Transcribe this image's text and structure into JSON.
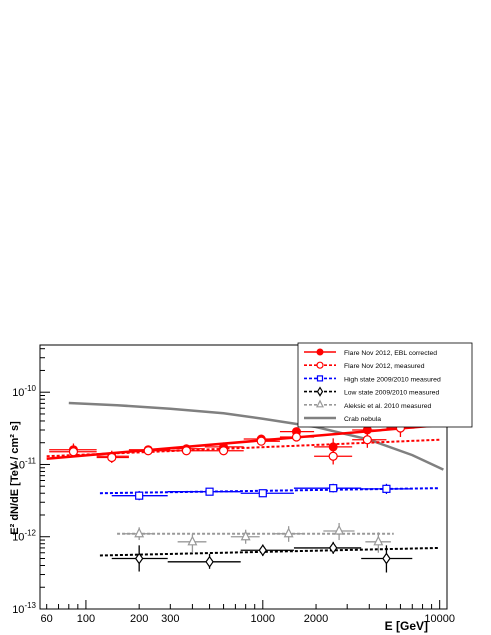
{
  "chart_data": {
    "type": "scatter",
    "title": "",
    "xlabel": "E [GeV]",
    "ylabel": "E² dN/dE [TeV / cm² s]",
    "xscale": "log",
    "yscale": "log",
    "xlim": [
      55,
      11000
    ],
    "ylim": [
      1e-13,
      4.5e-10
    ],
    "x_tick_labels": [
      {
        "value": 60,
        "label": "60"
      },
      {
        "value": 100,
        "label": "100"
      },
      {
        "value": 200,
        "label": "200"
      },
      {
        "value": 300,
        "label": "300"
      },
      {
        "value": 1000,
        "label": "1000"
      },
      {
        "value": 2000,
        "label": "2000"
      },
      {
        "value": 10000,
        "label": "10000"
      }
    ],
    "y_tick_labels": [
      {
        "value": 1e-13,
        "base": "10",
        "exp": "-13"
      },
      {
        "value": 1e-12,
        "base": "10",
        "exp": "-12"
      },
      {
        "value": 1e-11,
        "base": "10",
        "exp": "-11"
      },
      {
        "value": 1e-10,
        "base": "10",
        "exp": "-10"
      }
    ],
    "grid": false,
    "legend_position": "top-right",
    "series": [
      {
        "name": "Flare Nov 2012, EBL corrected",
        "color": "#ff0000",
        "marker": "filled-circle",
        "fit": {
          "from": 60,
          "to": 10000,
          "y_from": 1.2e-11,
          "y_to": 3.5e-11,
          "style": "solid"
        },
        "points": [
          {
            "x": 85,
            "y": 1.6e-11,
            "xlo": 62,
            "xhi": 115,
            "ylo": 1.3e-11,
            "yhi": 1.95e-11
          },
          {
            "x": 140,
            "y": 1.3e-11,
            "xlo": 115,
            "xhi": 175,
            "ylo": 1.1e-11,
            "yhi": 1.55e-11
          },
          {
            "x": 225,
            "y": 1.6e-11,
            "xlo": 175,
            "xhi": 300,
            "ylo": 1.45e-11,
            "yhi": 1.78e-11
          },
          {
            "x": 370,
            "y": 1.65e-11,
            "xlo": 300,
            "xhi": 470,
            "ylo": 1.5e-11,
            "yhi": 1.82e-11
          },
          {
            "x": 600,
            "y": 1.75e-11,
            "xlo": 470,
            "xhi": 780,
            "ylo": 1.55e-11,
            "yhi": 1.98e-11
          },
          {
            "x": 980,
            "y": 2.25e-11,
            "xlo": 780,
            "xhi": 1250,
            "ylo": 2e-11,
            "yhi": 2.5e-11
          },
          {
            "x": 1550,
            "y": 2.85e-11,
            "xlo": 1250,
            "xhi": 1950,
            "ylo": 2.5e-11,
            "yhi": 3.2e-11
          },
          {
            "x": 2500,
            "y": 1.75e-11,
            "xlo": 1950,
            "xhi": 3200,
            "ylo": 1.35e-11,
            "yhi": 2.3e-11
          },
          {
            "x": 3900,
            "y": 3e-11,
            "xlo": 3200,
            "xhi": 5000,
            "ylo": 2.3e-11,
            "yhi": 4e-11
          },
          {
            "x": 6000,
            "y": 5e-11,
            "xlo": 5000,
            "xhi": 7200,
            "ylo": 3.8e-11,
            "yhi": 6.6e-11
          }
        ]
      },
      {
        "name": "Flare Nov 2012, measured",
        "color": "#ff0000",
        "marker": "open-circle",
        "fit": {
          "from": 60,
          "to": 10000,
          "y_from": 1.3e-11,
          "y_to": 2.2e-11,
          "style": "dotted"
        },
        "points": [
          {
            "x": 85,
            "y": 1.5e-11,
            "xlo": 62,
            "xhi": 115,
            "ylo": 1.25e-11,
            "yhi": 1.8e-11
          },
          {
            "x": 140,
            "y": 1.25e-11,
            "xlo": 115,
            "xhi": 175,
            "ylo": 1.05e-11,
            "yhi": 1.48e-11
          },
          {
            "x": 225,
            "y": 1.55e-11,
            "xlo": 175,
            "xhi": 300,
            "ylo": 1.4e-11,
            "yhi": 1.72e-11
          },
          {
            "x": 370,
            "y": 1.55e-11,
            "xlo": 300,
            "xhi": 470,
            "ylo": 1.4e-11,
            "yhi": 1.72e-11
          },
          {
            "x": 600,
            "y": 1.55e-11,
            "xlo": 470,
            "xhi": 780,
            "ylo": 1.38e-11,
            "yhi": 1.75e-11
          },
          {
            "x": 980,
            "y": 2.1e-11,
            "xlo": 780,
            "xhi": 1250,
            "ylo": 1.85e-11,
            "yhi": 2.35e-11
          },
          {
            "x": 1550,
            "y": 2.4e-11,
            "xlo": 1250,
            "xhi": 1950,
            "ylo": 2.1e-11,
            "yhi": 2.75e-11
          },
          {
            "x": 2500,
            "y": 1.3e-11,
            "xlo": 1950,
            "xhi": 3200,
            "ylo": 1e-11,
            "yhi": 1.7e-11
          },
          {
            "x": 3900,
            "y": 2.2e-11,
            "xlo": 3200,
            "xhi": 5000,
            "ylo": 1.7e-11,
            "yhi": 2.9e-11
          },
          {
            "x": 6000,
            "y": 3.2e-11,
            "xlo": 5000,
            "xhi": 7200,
            "ylo": 2.4e-11,
            "yhi": 4.3e-11
          }
        ]
      },
      {
        "name": "High state 2009/2010 measured",
        "color": "#0000ff",
        "marker": "open-square",
        "fit": {
          "from": 120,
          "to": 10000,
          "y_from": 4e-12,
          "y_to": 4.7e-12,
          "style": "dotted"
        },
        "points": [
          {
            "x": 200,
            "y": 3.7e-12,
            "xlo": 140,
            "xhi": 290,
            "ylo": 3.2e-12,
            "yhi": 4.3e-12
          },
          {
            "x": 500,
            "y": 4.2e-12,
            "xlo": 290,
            "xhi": 750,
            "ylo": 3.8e-12,
            "yhi": 4.6e-12
          },
          {
            "x": 1000,
            "y": 4e-12,
            "xlo": 750,
            "xhi": 1500,
            "ylo": 3.6e-12,
            "yhi": 4.45e-12
          },
          {
            "x": 2500,
            "y": 4.7e-12,
            "xlo": 1500,
            "xhi": 3600,
            "ylo": 4.1e-12,
            "yhi": 5.4e-12
          },
          {
            "x": 5000,
            "y": 4.6e-12,
            "xlo": 3600,
            "xhi": 7000,
            "ylo": 3.9e-12,
            "yhi": 5.4e-12
          }
        ]
      },
      {
        "name": "Low state 2009/2010 measured",
        "color": "#000000",
        "marker": "open-diamond",
        "fit": {
          "from": 120,
          "to": 10000,
          "y_from": 5.5e-13,
          "y_to": 7e-13,
          "style": "dotted"
        },
        "points": [
          {
            "x": 200,
            "y": 5e-13,
            "xlo": 140,
            "xhi": 290,
            "ylo": 3.3e-13,
            "yhi": 7.6e-13
          },
          {
            "x": 500,
            "y": 4.5e-13,
            "xlo": 290,
            "xhi": 750,
            "ylo": 3.6e-13,
            "yhi": 5.8e-13
          },
          {
            "x": 1000,
            "y": 6.5e-13,
            "xlo": 750,
            "xhi": 1500,
            "ylo": 5.4e-13,
            "yhi": 7.8e-13
          },
          {
            "x": 2500,
            "y": 7e-13,
            "xlo": 1500,
            "xhi": 3600,
            "ylo": 5.8e-13,
            "yhi": 8.5e-13
          },
          {
            "x": 5000,
            "y": 5e-13,
            "xlo": 3600,
            "xhi": 7000,
            "ylo": 3.2e-13,
            "yhi": 7.6e-13
          }
        ]
      },
      {
        "name": "Aleksic et al. 2010 measured",
        "color": "#999999",
        "marker": "open-triangle",
        "fit": {
          "from": 150,
          "to": 5500,
          "y_from": 1.1e-12,
          "y_to": 1.1e-12,
          "style": "dotted"
        },
        "points": [
          {
            "x": 200,
            "y": 1.1e-12,
            "xlo": 165,
            "xhi": 240,
            "ylo": 9e-13,
            "yhi": 1.35e-12
          },
          {
            "x": 400,
            "y": 8.5e-13,
            "xlo": 330,
            "xhi": 480,
            "ylo": 6e-13,
            "yhi": 1.1e-12
          },
          {
            "x": 800,
            "y": 1e-12,
            "xlo": 660,
            "xhi": 960,
            "ylo": 8e-13,
            "yhi": 1.25e-12
          },
          {
            "x": 1400,
            "y": 1.1e-12,
            "xlo": 1150,
            "xhi": 1700,
            "ylo": 8.5e-13,
            "yhi": 1.4e-12
          },
          {
            "x": 2700,
            "y": 1.2e-12,
            "xlo": 2200,
            "xhi": 3300,
            "ylo": 9e-13,
            "yhi": 1.55e-12
          },
          {
            "x": 4500,
            "y": 8.5e-13,
            "xlo": 3800,
            "xhi": 5300,
            "ylo": 6e-13,
            "yhi": 1.15e-12
          }
        ]
      },
      {
        "name": "Crab nebula",
        "color": "#808080",
        "marker": "line",
        "curve": [
          {
            "x": 80,
            "y": 7.1e-11
          },
          {
            "x": 150,
            "y": 6.6e-11
          },
          {
            "x": 300,
            "y": 5.9e-11
          },
          {
            "x": 600,
            "y": 5.1e-11
          },
          {
            "x": 1000,
            "y": 4.3e-11
          },
          {
            "x": 2000,
            "y": 3.3e-11
          },
          {
            "x": 4000,
            "y": 2.2e-11
          },
          {
            "x": 7000,
            "y": 1.35e-11
          },
          {
            "x": 10500,
            "y": 8.5e-12
          }
        ]
      }
    ]
  }
}
